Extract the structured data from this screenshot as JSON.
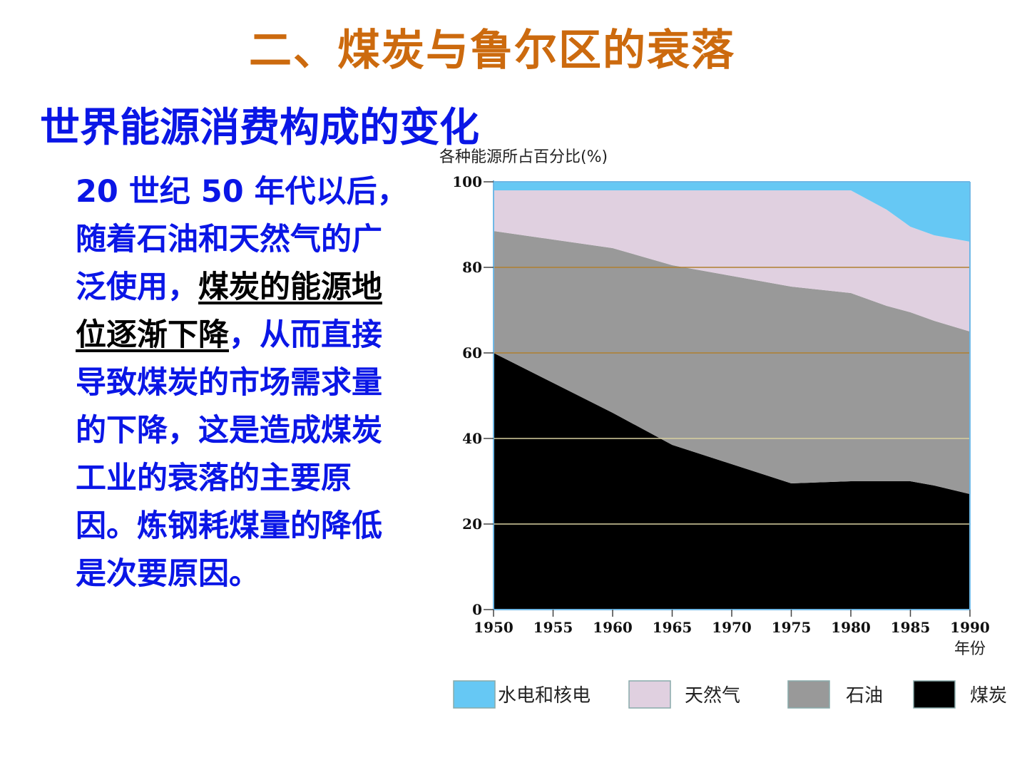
{
  "slide": {
    "title": "二、煤炭与鲁尔区的衰落",
    "section_title": "世界能源消费构成的变化",
    "body": {
      "part1": "20 世纪 50 年代以后，随着石油和天然气的广泛使用，",
      "part2": "煤炭的能源地位逐渐下降",
      "part3": "，从而直接导致煤炭的市场需求量的下降，这是造成煤炭工业的衰落的主要原因。炼钢耗煤量的降低是次要原因。"
    }
  },
  "chart_data": {
    "type": "area",
    "stacked": true,
    "ylabel": "各种能源所占百分比(%)",
    "xlabel": "年份",
    "x": [
      1950,
      1955,
      1960,
      1965,
      1970,
      1975,
      1980,
      1981,
      1983,
      1985,
      1987,
      1990
    ],
    "ylim": [
      0,
      100
    ],
    "xlim": [
      1950,
      1990
    ],
    "xticks": [
      "1950",
      "1955",
      "1960",
      "1965",
      "1970",
      "1975",
      "1980",
      "1985",
      "1990"
    ],
    "yticks": [
      "0",
      "20",
      "40",
      "60",
      "80",
      "100"
    ],
    "grid": true,
    "legend_position": "bottom",
    "series": [
      {
        "name": "煤炭",
        "color": "#000000",
        "values": [
          60,
          53,
          46,
          38.5,
          34,
          29.5,
          30,
          30,
          30,
          30,
          29,
          27
        ]
      },
      {
        "name": "石油",
        "color": "#999999",
        "values": [
          28.5,
          33.5,
          38.5,
          42,
          44,
          46,
          44,
          43,
          41,
          39.5,
          38.5,
          38
        ]
      },
      {
        "name": "天然气",
        "color": "#e0d0e0",
        "values": [
          9.5,
          11.5,
          13.5,
          17.5,
          20,
          22.5,
          24,
          23.5,
          22.5,
          20,
          20,
          21
        ]
      },
      {
        "name": "水电和核电",
        "color": "#66c8f4",
        "values": [
          2,
          2,
          2,
          2,
          2,
          2,
          2,
          3.5,
          6.5,
          10.5,
          12.5,
          14
        ]
      }
    ]
  }
}
